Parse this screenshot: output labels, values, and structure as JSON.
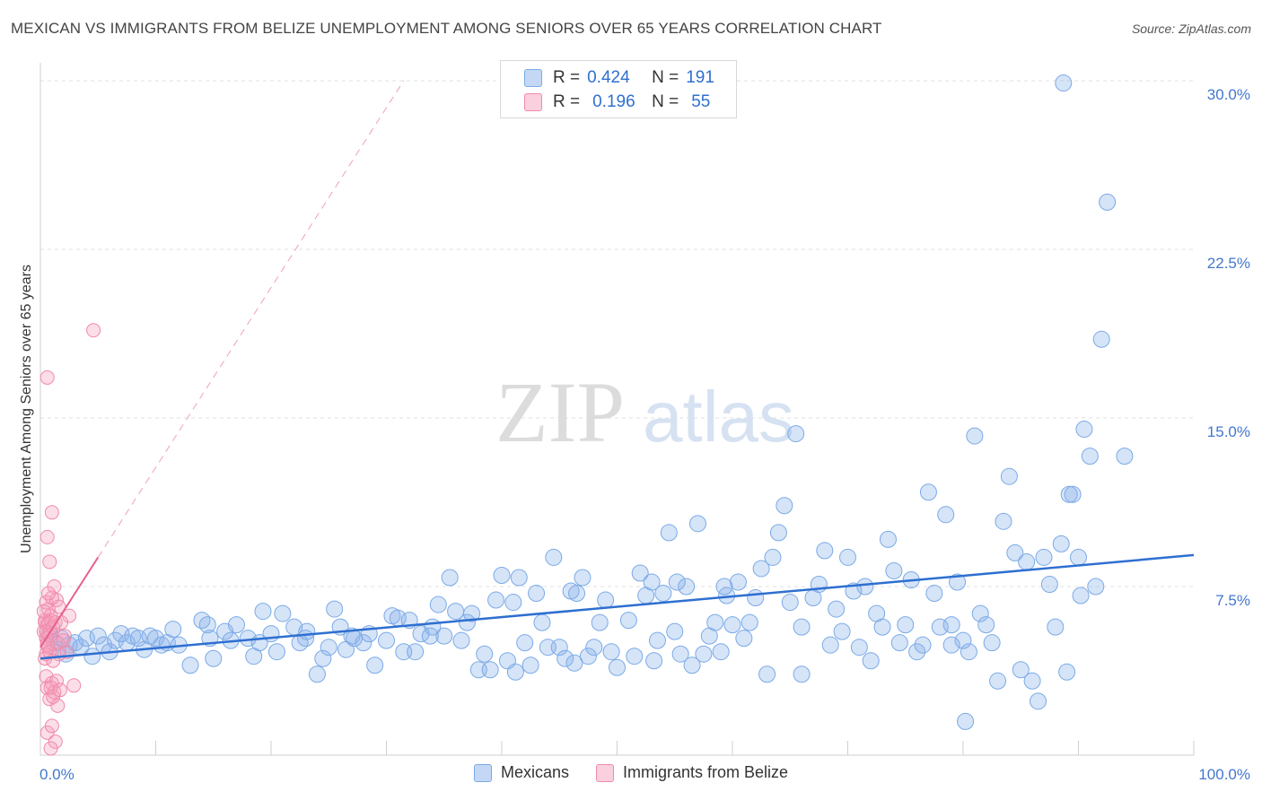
{
  "header": {
    "title": "MEXICAN VS IMMIGRANTS FROM BELIZE UNEMPLOYMENT AMONG SENIORS OVER 65 YEARS CORRELATION CHART",
    "source": "Source: ZipAtlas.com"
  },
  "watermark": {
    "zip": "ZIP",
    "atlas": "atlas"
  },
  "legend": {
    "mexicans": {
      "r_label": "R = ",
      "r_value": "0.424",
      "n_label": "N = ",
      "n_value": "191"
    },
    "belize": {
      "r_label": "R = ",
      "r_value": "0.196",
      "n_label": "N = ",
      "n_value": "55"
    }
  },
  "bottom_legend": {
    "mexicans": "Mexicans",
    "belize": "Immigrants from Belize"
  },
  "colors": {
    "blue_fill": "rgba(138,178,235,0.35)",
    "blue_stroke": "#7aaae6",
    "blue_line": "#2e6fd0",
    "pink_fill": "rgba(245,160,190,0.35)",
    "pink_stroke": "#f08aaa",
    "pink_line": "#e8608e",
    "tick_text": "#4477cc"
  },
  "chart_data": {
    "type": "scatter",
    "title": "MEXICAN VS IMMIGRANTS FROM BELIZE UNEMPLOYMENT AMONG SENIORS OVER 65 YEARS CORRELATION CHART",
    "xlabel": "",
    "ylabel": "Unemployment Among Seniors over 65 years",
    "xlim": [
      0,
      100
    ],
    "ylim": [
      0,
      30.8
    ],
    "x_tick_labels": [
      "0.0%",
      "100.0%"
    ],
    "y_ticks": [
      7.5,
      15.0,
      22.5,
      30.0
    ],
    "y_tick_labels": [
      "7.5%",
      "15.0%",
      "22.5%",
      "30.0%"
    ],
    "grid": true,
    "series": [
      {
        "name": "Mexicans",
        "R": 0.424,
        "N": 191,
        "trend": {
          "x0": 0,
          "y0": 4.3,
          "x1": 100,
          "y1": 8.9
        },
        "points": [
          [
            0.8,
            5.4
          ],
          [
            1.2,
            5.0
          ],
          [
            1.5,
            4.7
          ],
          [
            1.8,
            5.2
          ],
          [
            2.2,
            4.5
          ],
          [
            2.5,
            4.9
          ],
          [
            3.0,
            5.0
          ],
          [
            3.5,
            4.8
          ],
          [
            4.0,
            5.2
          ],
          [
            4.5,
            4.4
          ],
          [
            5.0,
            5.3
          ],
          [
            5.5,
            4.9
          ],
          [
            6.0,
            4.6
          ],
          [
            6.5,
            5.1
          ],
          [
            7.0,
            5.4
          ],
          [
            7.5,
            5.0
          ],
          [
            8.0,
            5.3
          ],
          [
            8.5,
            5.2
          ],
          [
            9.0,
            4.7
          ],
          [
            9.5,
            5.3
          ],
          [
            10.0,
            5.2
          ],
          [
            10.5,
            4.9
          ],
          [
            11.0,
            5.0
          ],
          [
            11.5,
            5.6
          ],
          [
            12.0,
            4.9
          ],
          [
            13.0,
            4.0
          ],
          [
            14.0,
            6.0
          ],
          [
            14.5,
            5.8
          ],
          [
            15.0,
            4.3
          ],
          [
            16.0,
            5.5
          ],
          [
            16.5,
            5.1
          ],
          [
            17.0,
            5.8
          ],
          [
            18.0,
            5.2
          ],
          [
            18.5,
            4.4
          ],
          [
            19.0,
            5.0
          ],
          [
            20.0,
            5.4
          ],
          [
            20.5,
            4.6
          ],
          [
            21.0,
            6.3
          ],
          [
            22.0,
            5.7
          ],
          [
            22.5,
            5.0
          ],
          [
            23.0,
            5.2
          ],
          [
            24.0,
            3.6
          ],
          [
            24.5,
            4.3
          ],
          [
            25.0,
            4.8
          ],
          [
            25.5,
            6.5
          ],
          [
            26.0,
            5.7
          ],
          [
            26.5,
            4.7
          ],
          [
            27.0,
            5.3
          ],
          [
            28.0,
            5.0
          ],
          [
            28.5,
            5.4
          ],
          [
            29.0,
            4.0
          ],
          [
            30.0,
            5.1
          ],
          [
            30.5,
            6.2
          ],
          [
            31.0,
            6.1
          ],
          [
            31.5,
            4.6
          ],
          [
            32.0,
            6.0
          ],
          [
            32.5,
            4.6
          ],
          [
            33.0,
            5.4
          ],
          [
            34.0,
            5.7
          ],
          [
            34.5,
            6.7
          ],
          [
            35.0,
            5.3
          ],
          [
            35.5,
            7.9
          ],
          [
            36.0,
            6.4
          ],
          [
            36.5,
            5.1
          ],
          [
            37.0,
            5.9
          ],
          [
            38.0,
            3.8
          ],
          [
            38.5,
            4.5
          ],
          [
            39.0,
            3.8
          ],
          [
            39.5,
            6.9
          ],
          [
            40.0,
            8.0
          ],
          [
            40.5,
            4.2
          ],
          [
            41.0,
            6.8
          ],
          [
            41.5,
            7.9
          ],
          [
            42.0,
            5.0
          ],
          [
            42.5,
            4.0
          ],
          [
            43.0,
            7.2
          ],
          [
            43.5,
            5.9
          ],
          [
            44.0,
            4.8
          ],
          [
            44.5,
            8.8
          ],
          [
            45.0,
            4.8
          ],
          [
            45.5,
            4.3
          ],
          [
            46.0,
            7.3
          ],
          [
            46.5,
            7.2
          ],
          [
            47.0,
            7.9
          ],
          [
            47.5,
            4.4
          ],
          [
            48.0,
            4.8
          ],
          [
            48.5,
            5.9
          ],
          [
            49.0,
            6.9
          ],
          [
            49.5,
            4.6
          ],
          [
            50.0,
            3.9
          ],
          [
            51.0,
            6.0
          ],
          [
            51.5,
            4.4
          ],
          [
            52.0,
            8.1
          ],
          [
            52.5,
            7.1
          ],
          [
            53.0,
            7.7
          ],
          [
            53.5,
            5.1
          ],
          [
            54.0,
            7.2
          ],
          [
            54.5,
            9.9
          ],
          [
            55.0,
            5.5
          ],
          [
            55.5,
            4.5
          ],
          [
            56.0,
            7.5
          ],
          [
            56.5,
            4.0
          ],
          [
            57.0,
            10.3
          ],
          [
            57.5,
            4.5
          ],
          [
            58.0,
            5.3
          ],
          [
            58.5,
            5.9
          ],
          [
            59.0,
            4.6
          ],
          [
            59.5,
            7.1
          ],
          [
            60.0,
            5.8
          ],
          [
            60.5,
            7.7
          ],
          [
            61.0,
            5.2
          ],
          [
            61.5,
            5.9
          ],
          [
            62.0,
            7.0
          ],
          [
            62.5,
            8.3
          ],
          [
            63.0,
            3.6
          ],
          [
            63.5,
            8.8
          ],
          [
            64.0,
            9.9
          ],
          [
            64.5,
            11.1
          ],
          [
            65.0,
            6.8
          ],
          [
            65.5,
            14.3
          ],
          [
            66.0,
            5.7
          ],
          [
            67.0,
            7.0
          ],
          [
            67.5,
            7.6
          ],
          [
            68.0,
            9.1
          ],
          [
            68.5,
            4.9
          ],
          [
            69.0,
            6.5
          ],
          [
            69.5,
            5.5
          ],
          [
            70.0,
            8.8
          ],
          [
            70.5,
            7.3
          ],
          [
            71.0,
            4.8
          ],
          [
            71.5,
            7.5
          ],
          [
            72.0,
            4.2
          ],
          [
            72.5,
            6.3
          ],
          [
            73.0,
            5.7
          ],
          [
            73.5,
            9.6
          ],
          [
            74.0,
            8.2
          ],
          [
            74.5,
            5.0
          ],
          [
            75.0,
            5.8
          ],
          [
            75.5,
            7.8
          ],
          [
            76.0,
            4.6
          ],
          [
            76.5,
            4.9
          ],
          [
            77.0,
            11.7
          ],
          [
            77.5,
            7.2
          ],
          [
            78.0,
            5.7
          ],
          [
            78.5,
            10.7
          ],
          [
            79.0,
            5.8
          ],
          [
            79.5,
            7.7
          ],
          [
            80.0,
            5.1
          ],
          [
            80.5,
            4.6
          ],
          [
            81.0,
            14.2
          ],
          [
            81.5,
            6.3
          ],
          [
            82.0,
            5.8
          ],
          [
            82.5,
            5.0
          ],
          [
            83.0,
            3.3
          ],
          [
            83.5,
            10.4
          ],
          [
            84.0,
            12.4
          ],
          [
            84.5,
            9.0
          ],
          [
            85.0,
            3.8
          ],
          [
            85.5,
            8.6
          ],
          [
            86.0,
            3.3
          ],
          [
            86.5,
            2.4
          ],
          [
            87.0,
            8.8
          ],
          [
            87.5,
            7.6
          ],
          [
            88.0,
            5.7
          ],
          [
            88.5,
            9.4
          ],
          [
            89.0,
            3.7
          ],
          [
            89.5,
            11.6
          ],
          [
            90.0,
            8.8
          ],
          [
            90.5,
            14.5
          ],
          [
            91.0,
            13.3
          ],
          [
            91.5,
            7.5
          ],
          [
            92.0,
            18.5
          ],
          [
            94.0,
            13.3
          ],
          [
            92.5,
            24.6
          ],
          [
            88.7,
            29.9
          ],
          [
            89.2,
            11.6
          ],
          [
            90.2,
            7.1
          ],
          [
            80.2,
            1.5
          ],
          [
            79.0,
            4.9
          ],
          [
            66.0,
            3.6
          ],
          [
            59.3,
            7.5
          ],
          [
            55.2,
            7.7
          ],
          [
            53.2,
            4.2
          ],
          [
            46.3,
            4.1
          ],
          [
            41.2,
            3.7
          ],
          [
            37.4,
            6.3
          ],
          [
            33.8,
            5.3
          ],
          [
            27.2,
            5.2
          ],
          [
            23.1,
            5.5
          ],
          [
            19.3,
            6.4
          ],
          [
            14.7,
            5.2
          ]
        ]
      },
      {
        "name": "Immigrants from Belize",
        "R": 0.196,
        "N": 55,
        "trend": {
          "x0": 0,
          "y0": 4.8,
          "x1": 5,
          "y1": 8.8
        },
        "trend_extended": {
          "x0": 5,
          "y0": 8.8,
          "x1": 31.5,
          "y1": 30.0
        },
        "points": [
          [
            0.3,
            5.5
          ],
          [
            0.4,
            6.0
          ],
          [
            0.5,
            5.2
          ],
          [
            0.6,
            5.8
          ],
          [
            0.5,
            4.5
          ],
          [
            0.7,
            6.5
          ],
          [
            0.6,
            5.0
          ],
          [
            0.8,
            5.6
          ],
          [
            0.9,
            6.2
          ],
          [
            0.7,
            4.8
          ],
          [
            0.4,
            4.3
          ],
          [
            0.5,
            3.5
          ],
          [
            0.6,
            3.0
          ],
          [
            0.8,
            2.5
          ],
          [
            1.0,
            3.2
          ],
          [
            1.2,
            2.8
          ],
          [
            1.4,
            3.3
          ],
          [
            0.9,
            3.0
          ],
          [
            1.1,
            2.6
          ],
          [
            1.5,
            2.2
          ],
          [
            0.6,
            1.0
          ],
          [
            1.0,
            1.3
          ],
          [
            1.3,
            0.6
          ],
          [
            0.9,
            0.3
          ],
          [
            0.5,
            6.8
          ],
          [
            1.2,
            7.5
          ],
          [
            1.4,
            6.9
          ],
          [
            1.6,
            6.6
          ],
          [
            1.0,
            7.0
          ],
          [
            2.5,
            6.2
          ],
          [
            0.6,
            9.7
          ],
          [
            1.0,
            10.8
          ],
          [
            0.8,
            8.6
          ],
          [
            0.6,
            16.8
          ],
          [
            4.6,
            18.9
          ],
          [
            1.8,
            5.9
          ],
          [
            2.1,
            5.3
          ],
          [
            1.6,
            4.5
          ],
          [
            2.3,
            4.6
          ],
          [
            2.9,
            3.1
          ],
          [
            0.4,
            5.9
          ],
          [
            0.5,
            5.5
          ],
          [
            0.7,
            5.9
          ],
          [
            0.8,
            5.3
          ],
          [
            0.9,
            6.0
          ],
          [
            1.1,
            5.7
          ],
          [
            1.3,
            5.9
          ],
          [
            0.6,
            4.9
          ],
          [
            0.8,
            4.6
          ],
          [
            1.5,
            5.0
          ],
          [
            2.0,
            5.1
          ],
          [
            1.7,
            2.9
          ],
          [
            1.1,
            4.2
          ],
          [
            0.3,
            6.4
          ],
          [
            0.7,
            7.2
          ]
        ]
      }
    ]
  }
}
